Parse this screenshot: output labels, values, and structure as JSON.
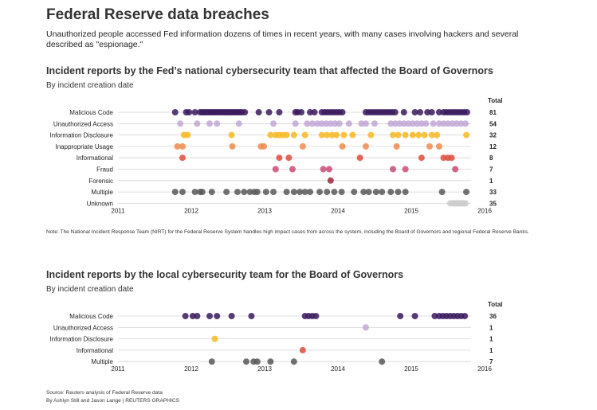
{
  "title": "Federal Reserve data breaches",
  "subtitle": "Unauthorized people accessed Fed information dozens of times in recent years, with many cases involving hackers and several described as \"espionage.\"",
  "note": "Note: The National Incident Response Team (NIRT) for the Federal Reserve System handles high impact cases from across the system, including the Board of Governors and regional Federal Reserve Banks.",
  "source": "Source: Reuters analysis of Federal Reserve data",
  "byline": "By Ashlyn Still and Jason Lange | REUTERS GRAPHICS",
  "chart_data": [
    {
      "type": "scatter",
      "title": "Incident reports by the Fed’s national cybersecurity team that affected the Board of Governors",
      "subtitle": "By incident creation date",
      "total_label": "Total",
      "xlim": [
        2011,
        2016
      ],
      "xticks": [
        "2011",
        "2012",
        "2013",
        "2014",
        "2015",
        "2016"
      ],
      "grid": "horizontal lines per category",
      "categories": [
        "Malicious Code",
        "Unauthorized Access",
        "Information Disclosure",
        "Inappropriate Usage",
        "Informational",
        "Fraud",
        "Forensic",
        "Multiple",
        "Unknown"
      ],
      "totals": [
        "81",
        "54",
        "32",
        "12",
        "8",
        "7",
        "1",
        "33",
        "35"
      ],
      "colors": [
        "#3b1a5e",
        "#c2a7d6",
        "#f7b923",
        "#f08c4e",
        "#dc4e3e",
        "#cc4a77",
        "#9e2a3f",
        "#585858",
        "#cccccc"
      ],
      "series": [
        {
          "name": "Malicious Code",
          "dates": [
            2011.78,
            2011.93,
            2011.97,
            2012.05,
            2012.12,
            2012.15,
            2012.18,
            2012.21,
            2012.24,
            2012.27,
            2012.3,
            2012.33,
            2012.36,
            2012.39,
            2012.42,
            2012.45,
            2012.48,
            2012.51,
            2012.54,
            2012.57,
            2012.6,
            2012.63,
            2012.66,
            2012.69,
            2012.73,
            2012.92,
            2013.06,
            2013.2,
            2013.42,
            2013.45,
            2013.5,
            2013.62,
            2013.68,
            2013.78,
            2013.82,
            2013.86,
            2013.9,
            2013.94,
            2013.98,
            2014.02,
            2014.06,
            2014.38,
            2014.42,
            2014.46,
            2014.5,
            2014.54,
            2014.58,
            2014.62,
            2014.66,
            2014.7,
            2014.74,
            2014.78,
            2014.9,
            2015.05,
            2015.12,
            2015.22,
            2015.28,
            2015.38,
            2015.44,
            2015.48,
            2015.52,
            2015.56,
            2015.6,
            2015.64,
            2015.68,
            2015.72,
            2015.76
          ]
        },
        {
          "name": "Unauthorized Access",
          "dates": [
            2011.85,
            2012.08,
            2012.25,
            2012.35,
            2012.65,
            2013.12,
            2013.42,
            2013.58,
            2013.65,
            2013.72,
            2013.78,
            2013.84,
            2013.9,
            2013.96,
            2014.02,
            2014.15,
            2014.32,
            2014.38,
            2014.5,
            2014.72,
            2014.78,
            2014.84,
            2014.9,
            2014.96,
            2015.02,
            2015.08,
            2015.14,
            2015.2,
            2015.3,
            2015.38,
            2015.44,
            2015.5,
            2015.56,
            2015.62,
            2015.68,
            2015.74
          ]
        },
        {
          "name": "Information Disclosure",
          "dates": [
            2011.9,
            2011.95,
            2012.55,
            2013.08,
            2013.15,
            2013.2,
            2013.25,
            2013.3,
            2013.4,
            2013.55,
            2013.78,
            2013.85,
            2013.92,
            2013.98,
            2014.08,
            2014.2,
            2014.45,
            2014.75,
            2014.82,
            2014.92,
            2015.02,
            2015.1,
            2015.18,
            2015.28,
            2015.35,
            2015.75
          ]
        },
        {
          "name": "Inappropriate Usage",
          "dates": [
            2011.81,
            2011.88,
            2012.56,
            2012.95,
            2012.99,
            2013.52,
            2014.06,
            2014.38,
            2014.8,
            2015.25,
            2015.38
          ]
        },
        {
          "name": "Informational",
          "dates": [
            2011.88,
            2013.2,
            2013.33,
            2014.3,
            2015.14,
            2015.44,
            2015.5,
            2015.55
          ]
        },
        {
          "name": "Fraud",
          "dates": [
            2013.15,
            2013.38,
            2013.8,
            2013.88,
            2014.75,
            2014.92,
            2015.6
          ]
        },
        {
          "name": "Forensic",
          "dates": [
            2013.9
          ]
        },
        {
          "name": "Multiple",
          "dates": [
            2011.78,
            2011.88,
            2012.05,
            2012.12,
            2012.15,
            2012.28,
            2012.48,
            2012.63,
            2012.72,
            2012.8,
            2012.86,
            2012.9,
            2013.02,
            2013.12,
            2013.3,
            2013.4,
            2013.48,
            2013.55,
            2013.62,
            2013.75,
            2013.85,
            2013.95,
            2014.05,
            2014.22,
            2014.35,
            2014.42,
            2014.52,
            2014.6,
            2014.72,
            2014.82,
            2014.92,
            2015.42,
            2015.75
          ]
        },
        {
          "name": "Unknown",
          "dates": [
            2015.53,
            2015.56,
            2015.58,
            2015.6,
            2015.62,
            2015.64,
            2015.66,
            2015.68,
            2015.7,
            2015.72,
            2015.74
          ]
        }
      ]
    },
    {
      "type": "scatter",
      "title": "Incident reports by the local cybersecurity team for the Board of Governors",
      "subtitle": "By incident creation date",
      "total_label": "Total",
      "xlim": [
        2011,
        2016
      ],
      "xticks": [
        "2011",
        "2012",
        "2013",
        "2014",
        "2015",
        "2016"
      ],
      "grid": "horizontal lines per category",
      "categories": [
        "Malicious Code",
        "Unauthorized Access",
        "Information Disclosure",
        "Informational",
        "Multiple"
      ],
      "totals": [
        "36",
        "1",
        "1",
        "1",
        "7"
      ],
      "colors": [
        "#3b1a5e",
        "#c2a7d6",
        "#f7b923",
        "#dc4e3e",
        "#585858"
      ],
      "series": [
        {
          "name": "Malicious Code",
          "dates": [
            2011.92,
            2012.02,
            2012.08,
            2012.25,
            2012.35,
            2012.55,
            2012.82,
            2013.55,
            2013.6,
            2013.65,
            2013.7,
            2014.85,
            2015.05,
            2015.32,
            2015.38,
            2015.43,
            2015.48,
            2015.53,
            2015.58,
            2015.63,
            2015.68,
            2015.73
          ]
        },
        {
          "name": "Unauthorized Access",
          "dates": [
            2014.38
          ]
        },
        {
          "name": "Information Disclosure",
          "dates": [
            2012.32
          ]
        },
        {
          "name": "Informational",
          "dates": [
            2013.52
          ]
        },
        {
          "name": "Multiple",
          "dates": [
            2012.28,
            2012.75,
            2012.85,
            2012.9,
            2013.08,
            2013.4,
            2014.6
          ]
        }
      ]
    }
  ]
}
